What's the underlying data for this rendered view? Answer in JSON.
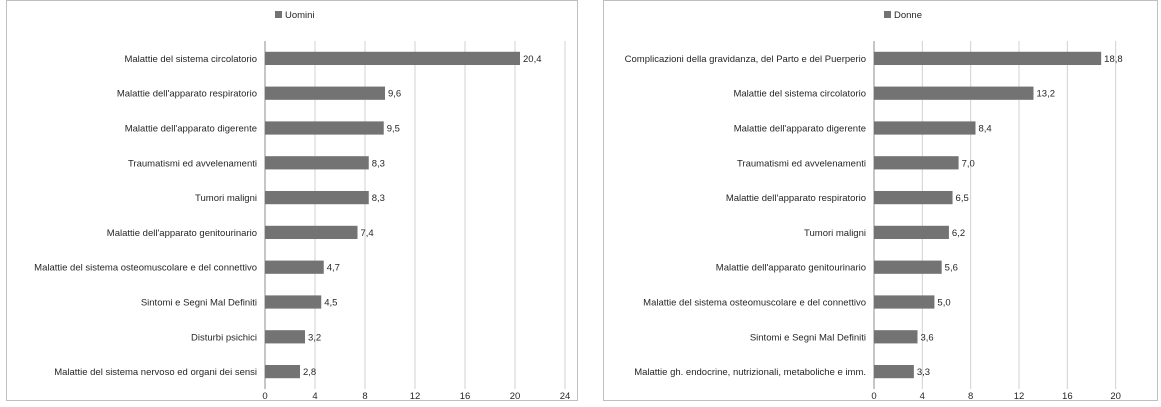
{
  "chart_data": [
    {
      "type": "bar",
      "orientation": "horizontal",
      "legend_position": "top-left",
      "bar_color": "#737373",
      "grid": true,
      "xlim": [
        0,
        24
      ],
      "x_ticks": [
        "0",
        "4",
        "8",
        "12",
        "16",
        "20",
        "24"
      ],
      "series": [
        {
          "name": "Uomini",
          "categories": [
            "Malattie del sistema circolatorio",
            "Malattie dell'apparato respiratorio",
            "Malattie dell'apparato digerente",
            "Traumatismi ed avvelenamenti",
            "Tumori maligni",
            "Malattie dell'apparato genitourinario",
            "Malattie del sistema osteomuscolare e del connettivo",
            "Sintomi e Segni Mal Definiti",
            "Disturbi psichici",
            "Malattie del sistema nervoso ed organi dei sensi"
          ],
          "values": [
            20.4,
            9.6,
            9.5,
            8.3,
            8.3,
            7.4,
            4.7,
            4.5,
            3.2,
            2.8
          ],
          "value_labels": [
            "20,4",
            "9,6",
            "9,5",
            "8,3",
            "8,3",
            "7,4",
            "4,7",
            "4,5",
            "3,2",
            "2,8"
          ]
        }
      ]
    },
    {
      "type": "bar",
      "orientation": "horizontal",
      "legend_position": "top-left",
      "bar_color": "#737373",
      "grid": true,
      "xlim": [
        0,
        24
      ],
      "x_ticks": [
        "0",
        "4",
        "8",
        "12",
        "16",
        "20",
        "24"
      ],
      "series": [
        {
          "name": "Donne",
          "categories": [
            "Complicazioni della gravidanza, del Parto e del Puerperio",
            "Malattie del sistema circolatorio",
            "Malattie dell'apparato digerente",
            "Traumatismi ed avvelenamenti",
            "Malattie dell'apparato respiratorio",
            "Tumori maligni",
            "Malattie dell'apparato genitourinario",
            "Malattie del sistema osteomuscolare e del connettivo",
            "Sintomi e Segni Mal Definiti",
            "Malattie gh. endocrine, nutrizionali, metaboliche e imm."
          ],
          "values": [
            18.8,
            13.2,
            8.4,
            7.0,
            6.5,
            6.2,
            5.6,
            5.0,
            3.6,
            3.3
          ],
          "value_labels": [
            "18,8",
            "13,2",
            "8,4",
            "7,0",
            "6,5",
            "6,2",
            "5,6",
            "5,0",
            "3,6",
            "3,3"
          ]
        }
      ]
    }
  ]
}
